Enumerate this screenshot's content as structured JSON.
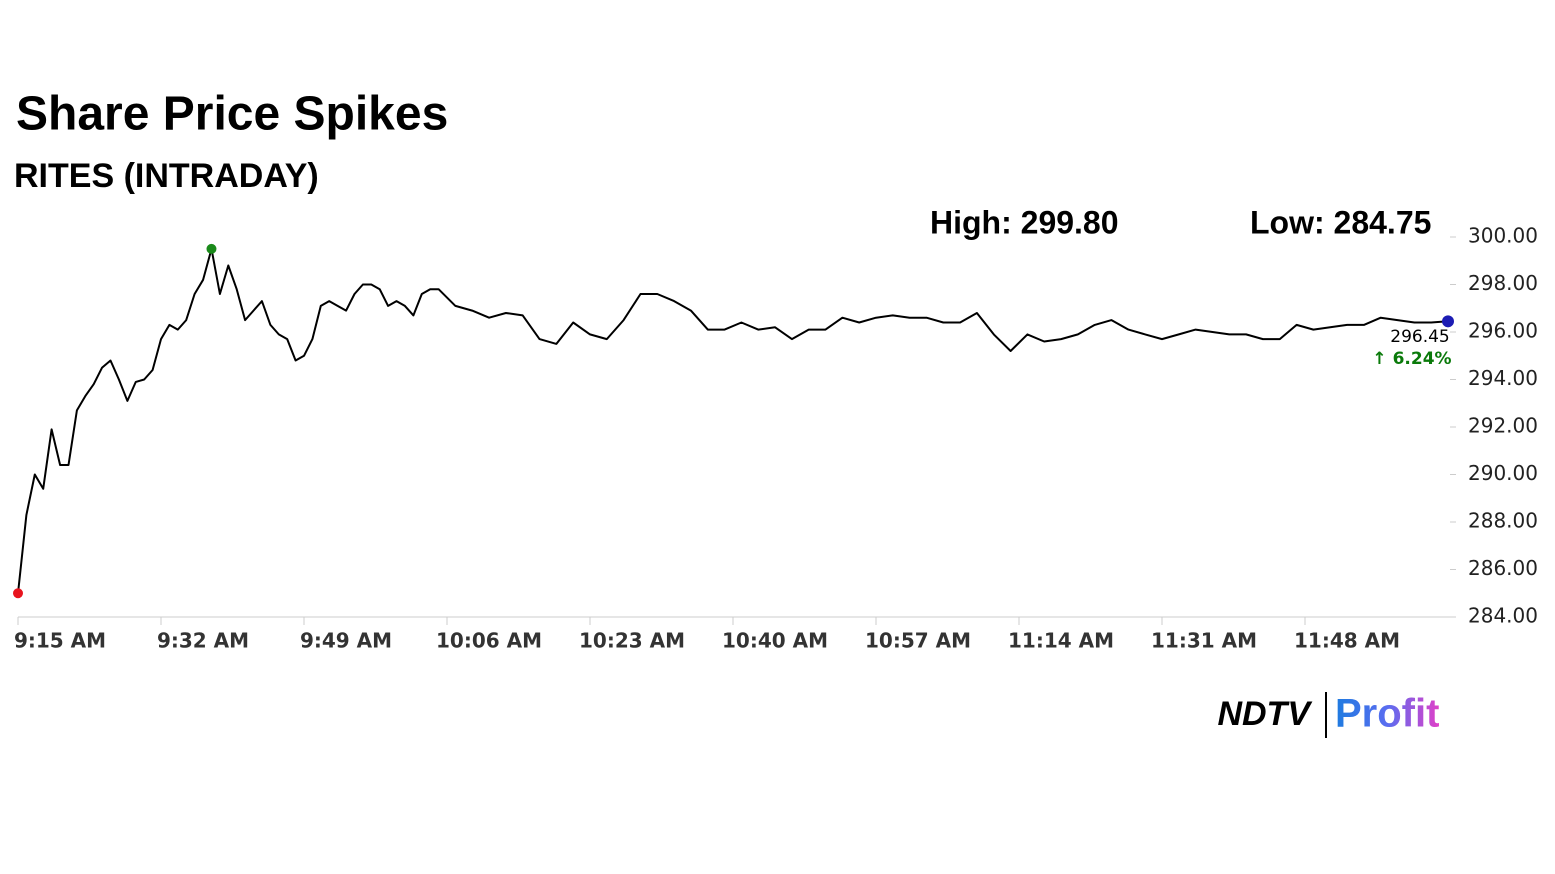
{
  "chart_data": {
    "type": "line",
    "title": "Share Price Spikes",
    "subtitle": "RITES (INTRADAY)",
    "annotations": {
      "high": "High: 299.80",
      "low": "Low: 284.75",
      "last_price": "296.45",
      "change": "↑ 6.24%"
    },
    "logo": {
      "left": "NDTV",
      "right": "Profit"
    },
    "x": [
      "9:15 AM",
      "9:16 AM",
      "9:17 AM",
      "9:18 AM",
      "9:19 AM",
      "9:20 AM",
      "9:21 AM",
      "9:22 AM",
      "9:23 AM",
      "9:24 AM",
      "9:25 AM",
      "9:26 AM",
      "9:27 AM",
      "9:28 AM",
      "9:29 AM",
      "9:30 AM",
      "9:31 AM",
      "9:32 AM",
      "9:33 AM",
      "9:34 AM",
      "9:35 AM",
      "9:36 AM",
      "9:37 AM",
      "9:38 AM",
      "9:39 AM",
      "9:40 AM",
      "9:41 AM",
      "9:42 AM",
      "9:43 AM",
      "9:44 AM",
      "9:45 AM",
      "9:46 AM",
      "9:47 AM",
      "9:48 AM",
      "9:49 AM",
      "9:50 AM",
      "9:51 AM",
      "9:52 AM",
      "9:53 AM",
      "9:54 AM",
      "9:55 AM",
      "9:56 AM",
      "9:57 AM",
      "9:58 AM",
      "9:59 AM",
      "10:00 AM",
      "10:01 AM",
      "10:02 AM",
      "10:03 AM",
      "10:04 AM",
      "10:05 AM",
      "10:07 AM",
      "10:09 AM",
      "10:11 AM",
      "10:13 AM",
      "10:15 AM",
      "10:17 AM",
      "10:19 AM",
      "10:21 AM",
      "10:23 AM",
      "10:25 AM",
      "10:27 AM",
      "10:29 AM",
      "10:31 AM",
      "10:33 AM",
      "10:35 AM",
      "10:37 AM",
      "10:39 AM",
      "10:41 AM",
      "10:43 AM",
      "10:45 AM",
      "10:47 AM",
      "10:49 AM",
      "10:51 AM",
      "10:53 AM",
      "10:55 AM",
      "10:57 AM",
      "10:59 AM",
      "11:01 AM",
      "11:03 AM",
      "11:05 AM",
      "11:07 AM",
      "11:09 AM",
      "11:11 AM",
      "11:13 AM",
      "11:15 AM",
      "11:17 AM",
      "11:19 AM",
      "11:21 AM",
      "11:23 AM",
      "11:25 AM",
      "11:27 AM",
      "11:29 AM",
      "11:31 AM",
      "11:33 AM",
      "11:35 AM",
      "11:37 AM",
      "11:39 AM",
      "11:41 AM",
      "11:43 AM",
      "11:45 AM",
      "11:47 AM",
      "11:49 AM",
      "11:51 AM",
      "11:53 AM",
      "11:55 AM",
      "11:57 AM",
      "11:59 AM",
      "12:01 PM",
      "12:03 PM",
      "12:05 PM"
    ],
    "series": [
      {
        "name": "RITES",
        "color": "#000000",
        "values": [
          285.0,
          288.3,
          290.0,
          289.4,
          291.9,
          290.4,
          290.4,
          292.7,
          293.3,
          293.8,
          294.5,
          294.8,
          294.0,
          293.1,
          293.9,
          294.0,
          294.4,
          295.7,
          296.3,
          296.1,
          296.5,
          297.6,
          298.2,
          299.5,
          297.6,
          298.8,
          297.8,
          296.5,
          296.9,
          297.3,
          296.3,
          295.9,
          295.7,
          294.8,
          295.0,
          295.7,
          297.1,
          297.3,
          297.1,
          296.9,
          297.6,
          298.0,
          298.0,
          297.8,
          297.1,
          297.3,
          297.1,
          296.7,
          297.6,
          297.8,
          297.8,
          297.1,
          296.9,
          296.6,
          296.8,
          296.7,
          295.7,
          295.5,
          296.4,
          295.9,
          295.7,
          296.5,
          297.6,
          297.6,
          297.3,
          296.9,
          296.1,
          296.1,
          296.4,
          296.1,
          296.2,
          295.7,
          296.1,
          296.1,
          296.6,
          296.4,
          296.6,
          296.7,
          296.6,
          296.6,
          296.4,
          296.4,
          296.8,
          295.9,
          295.2,
          295.9,
          295.6,
          295.7,
          295.9,
          296.3,
          296.5,
          296.1,
          295.9,
          295.7,
          295.9,
          296.1,
          296.0,
          295.9,
          295.9,
          295.7,
          295.7,
          296.3,
          296.1,
          296.2,
          296.3,
          296.3,
          296.6,
          296.5,
          296.4,
          296.4,
          296.45
        ]
      }
    ],
    "markers": {
      "low": "#e8141e",
      "high": "#1a8a1a",
      "last": "#1c1cb4"
    },
    "change_color": "#0a7a0a",
    "xlim": [
      "9:15 AM",
      "12:05 PM"
    ],
    "xticks": [
      "9:15 AM",
      "9:32 AM",
      "9:49 AM",
      "10:06 AM",
      "10:23 AM",
      "10:40 AM",
      "10:57 AM",
      "11:14 AM",
      "11:31 AM",
      "11:48 AM"
    ],
    "ylim": [
      284,
      300
    ],
    "yticks": [
      {
        "value": 284,
        "label": "284.00"
      },
      {
        "value": 286,
        "label": "286.00"
      },
      {
        "value": 288,
        "label": "288.00"
      },
      {
        "value": 290,
        "label": "290.00"
      },
      {
        "value": 292,
        "label": "292.00"
      },
      {
        "value": 294,
        "label": "294.00"
      },
      {
        "value": 296,
        "label": "296.00"
      },
      {
        "value": 298,
        "label": "298.00"
      },
      {
        "value": 300,
        "label": "300.00"
      }
    ],
    "grid": false
  }
}
